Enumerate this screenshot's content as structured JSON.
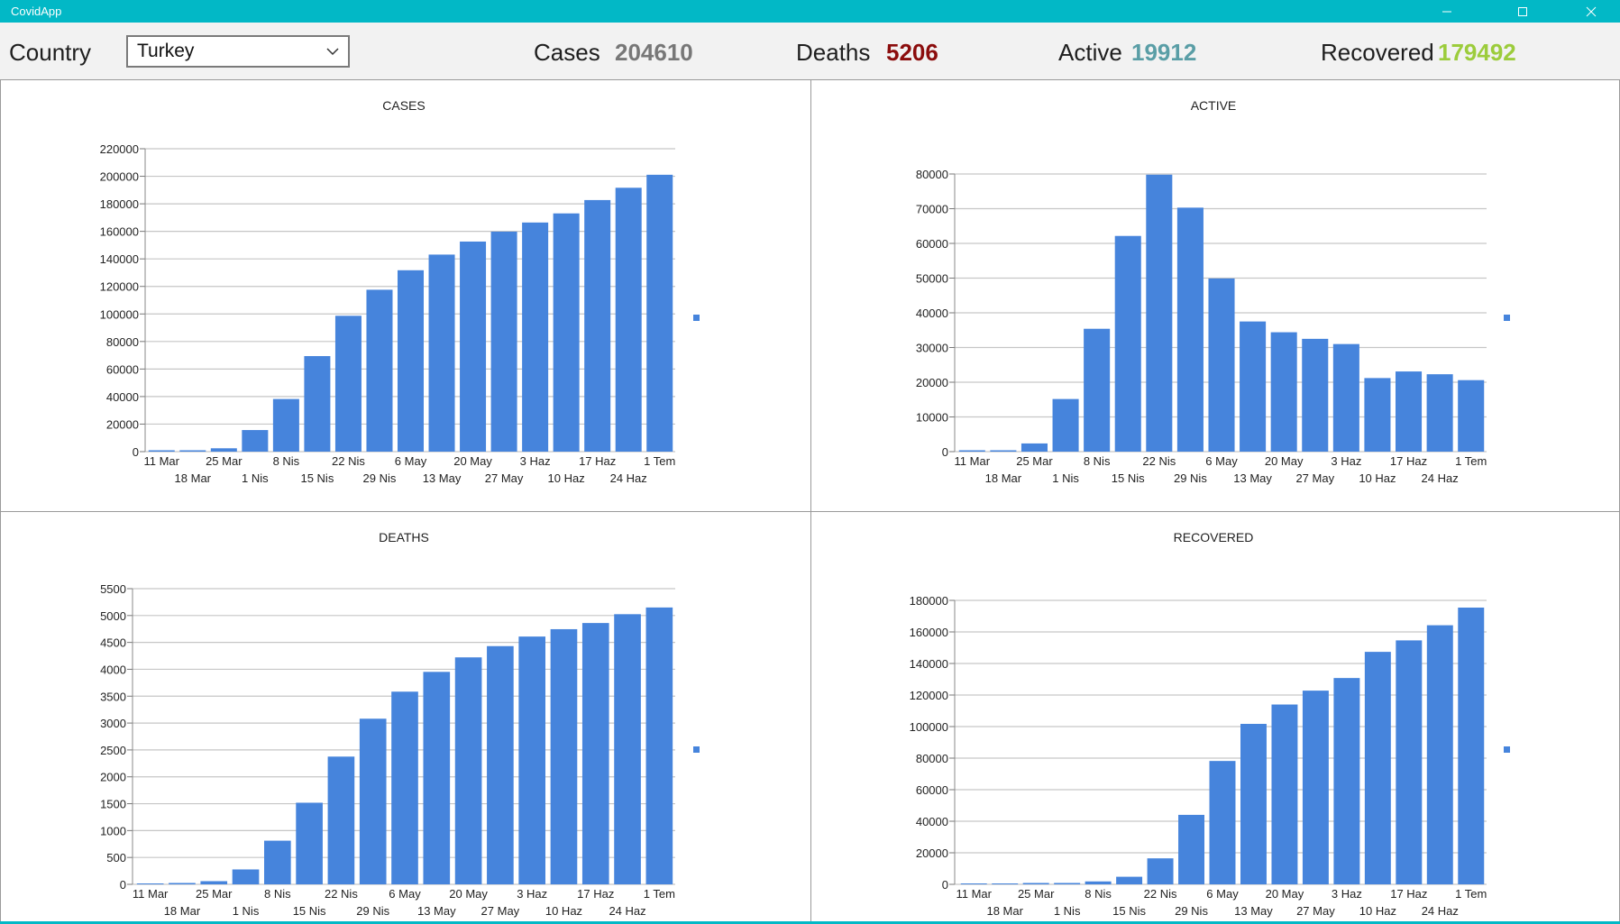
{
  "window": {
    "title": "CovidApp",
    "accent": "#02b8c6"
  },
  "toolbar": {
    "country_label": "Country",
    "country_selected": "Turkey",
    "cases_label": "Cases",
    "cases_value": "204610",
    "cases_color": "#777777",
    "deaths_label": "Deaths",
    "deaths_value": "5206",
    "deaths_color": "#8b0d0d",
    "active_label": "Active",
    "active_value": "19912",
    "active_color": "#5a9ea6",
    "recovered_label": "Recovered",
    "recovered_value": "179492",
    "recovered_color": "#9ccc3c"
  },
  "chart_data": [
    {
      "id": "cases",
      "type": "bar",
      "title": "CASES",
      "color": "#4684dc",
      "categories": [
        "11 Mar",
        "18 Mar",
        "25 Mar",
        "1 Nis",
        "8 Nis",
        "15 Nis",
        "22 Nis",
        "29 Nis",
        "6 May",
        "13 May",
        "20 May",
        "27 May",
        "3 Haz",
        "10 Haz",
        "17 Haz",
        "24 Haz",
        "1 Tem"
      ],
      "values": [
        1,
        191,
        2433,
        15679,
        38226,
        69392,
        98674,
        117589,
        131744,
        143114,
        152587,
        159797,
        166422,
        173036,
        182727,
        191657,
        201098
      ],
      "yticks": [
        0,
        20000,
        40000,
        60000,
        80000,
        100000,
        120000,
        140000,
        160000,
        180000,
        200000,
        220000
      ],
      "ylim": [
        0,
        220000
      ],
      "grid": true
    },
    {
      "id": "active",
      "type": "bar",
      "title": "ACTIVE",
      "color": "#4684dc",
      "categories": [
        "11 Mar",
        "18 Mar",
        "25 Mar",
        "1 Nis",
        "8 Nis",
        "15 Nis",
        "22 Nis",
        "29 Nis",
        "6 May",
        "13 May",
        "20 May",
        "27 May",
        "3 Haz",
        "10 Haz",
        "17 Haz",
        "24 Haz",
        "1 Tem"
      ],
      "values": [
        1,
        186,
        2362,
        15162,
        35400,
        62147,
        79800,
        70300,
        49900,
        37500,
        34400,
        32500,
        31000,
        21200,
        23100,
        22300,
        20600
      ],
      "yticks": [
        0,
        10000,
        20000,
        30000,
        40000,
        50000,
        60000,
        70000,
        80000
      ],
      "ylim": [
        0,
        80000
      ],
      "grid": true
    },
    {
      "id": "deaths",
      "type": "bar",
      "title": "DEATHS",
      "color": "#4684dc",
      "categories": [
        "11 Mar",
        "18 Mar",
        "25 Mar",
        "1 Nis",
        "8 Nis",
        "15 Nis",
        "22 Nis",
        "29 Nis",
        "6 May",
        "13 May",
        "20 May",
        "27 May",
        "3 Haz",
        "10 Haz",
        "17 Haz",
        "24 Haz",
        "1 Tem"
      ],
      "values": [
        0,
        4,
        59,
        277,
        812,
        1518,
        2376,
        3081,
        3584,
        3952,
        4222,
        4431,
        4609,
        4746,
        4861,
        5025,
        5150
      ],
      "yticks": [
        0,
        500,
        1000,
        1500,
        2000,
        2500,
        3000,
        3500,
        4000,
        4500,
        5000,
        5500
      ],
      "ylim": [
        0,
        5500
      ],
      "grid": true
    },
    {
      "id": "recovered",
      "type": "bar",
      "title": "RECOVERED",
      "color": "#4684dc",
      "categories": [
        "11 Mar",
        "18 Mar",
        "25 Mar",
        "1 Nis",
        "8 Nis",
        "15 Nis",
        "22 Nis",
        "29 Nis",
        "6 May",
        "13 May",
        "20 May",
        "27 May",
        "3 Haz",
        "10 Haz",
        "17 Haz",
        "24 Haz",
        "1 Tem"
      ],
      "values": [
        0,
        0,
        26,
        243,
        1846,
        4799,
        16477,
        44040,
        78202,
        101715,
        113987,
        122793,
        130787,
        147366,
        154640,
        164234,
        175422
      ],
      "yticks": [
        0,
        20000,
        40000,
        60000,
        80000,
        100000,
        120000,
        140000,
        160000,
        180000
      ],
      "ylim": [
        0,
        180000
      ],
      "grid": true
    }
  ]
}
